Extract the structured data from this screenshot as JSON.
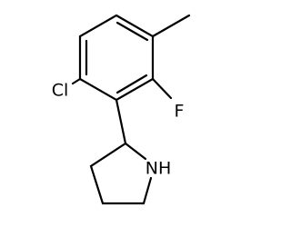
{
  "atoms": {
    "chlorine": "Cl",
    "fluorine": "F",
    "amine": "NH"
  }
}
